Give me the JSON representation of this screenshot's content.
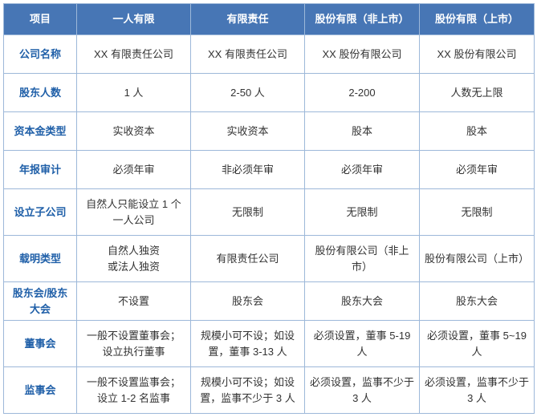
{
  "table": {
    "header_bg": "#4776b5",
    "header_fg": "#ffffff",
    "border_color": "#9db8d9",
    "rowhead_color": "#1f5fa8",
    "cell_color": "#333333",
    "font_size": 13,
    "columns": [
      "项目",
      "一人有限",
      "有限责任",
      "股份有限（非上市）",
      "股份有限（上市）"
    ],
    "rows": [
      {
        "label": "公司名称",
        "cells": [
          "XX 有限责任公司",
          "XX 有限责任公司",
          "XX 股份有限公司",
          "XX 股份有限公司"
        ]
      },
      {
        "label": "股东人数",
        "cells": [
          "1 人",
          "2-50 人",
          "2-200",
          "人数无上限"
        ]
      },
      {
        "label": "资本金类型",
        "cells": [
          "实收资本",
          "实收资本",
          "股本",
          "股本"
        ]
      },
      {
        "label": "年报审计",
        "cells": [
          "必须年审",
          "非必须年审",
          "必须年审",
          "必须年审"
        ]
      },
      {
        "label": "设立子公司",
        "cells": [
          "自然人只能设立 1 个一人公司",
          "无限制",
          "无限制",
          "无限制"
        ]
      },
      {
        "label": "载明类型",
        "cells": [
          "自然人独资\n或法人独资",
          "有限责任公司",
          "股份有限公司（非上市）",
          "股份有限公司（上市）"
        ]
      },
      {
        "label": "股东会/股东大会",
        "cells": [
          "不设置",
          "股东会",
          "股东大会",
          "股东大会"
        ]
      },
      {
        "label": "董事会",
        "cells": [
          "一般不设置董事会；设立执行董事",
          "规模小可不设；如设置，董事 3-13 人",
          "必须设置，董事 5-19 人",
          "必须设置，董事 5~19 人"
        ]
      },
      {
        "label": "监事会",
        "cells": [
          "一般不设置监事会；设立 1-2 名监事",
          "规模小可不设；如设置，监事不少于 3 人",
          "必须设置，监事不少于 3 人",
          "必须设置，监事不少于 3 人"
        ]
      }
    ]
  }
}
